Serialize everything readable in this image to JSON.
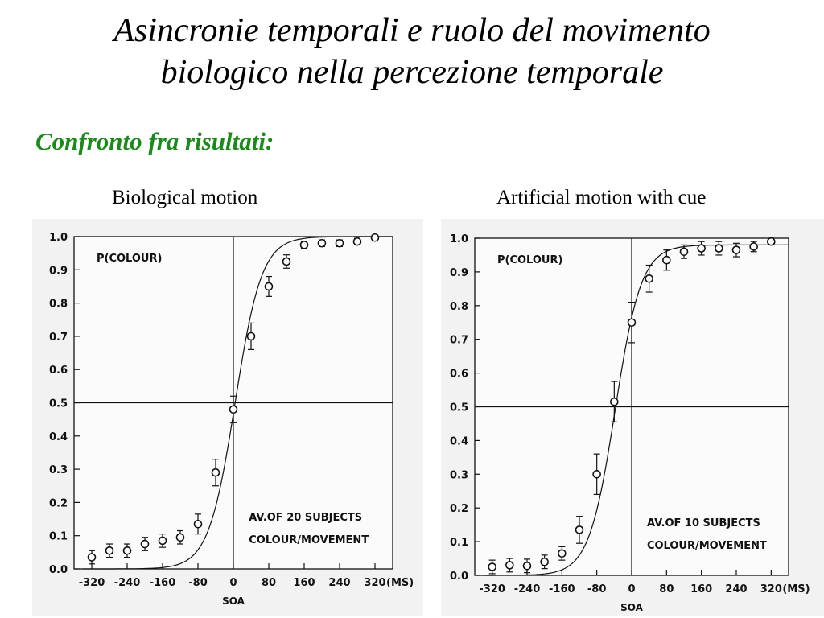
{
  "slide": {
    "title_line1": "Asincronie temporali e ruolo del movimento",
    "title_line2": "biologico nella percezione temporale",
    "subtitle": "Confronto fra risultati:"
  },
  "colors": {
    "subtitle": "#1a8a1a",
    "ink": "#111111",
    "scan_background": "#f2f2f2"
  },
  "chart_data": [
    {
      "type": "scatter",
      "panel_caption": "Biological motion",
      "ylabel": "P(COLOUR)",
      "xlabel": "SOA",
      "x_unit": "(MS)",
      "annotation": [
        "AV.OF 20 SUBJECTS",
        "COLOUR/MOVEMENT"
      ],
      "xlim": [
        -360,
        360
      ],
      "ylim": [
        0,
        1
      ],
      "xticks": [
        -320,
        -240,
        -160,
        -80,
        0,
        80,
        160,
        240,
        320
      ],
      "xticklabels": [
        "-320",
        "-240",
        "-160",
        "-80",
        "0",
        "80",
        "160",
        "240",
        "320"
      ],
      "yticks": [
        0,
        0.1,
        0.2,
        0.3,
        0.4,
        0.5,
        0.6,
        0.7,
        0.8,
        0.9,
        1.0
      ],
      "yticklabels": [
        "0.0",
        "0.1",
        "0.2",
        "0.3",
        "0.4",
        "0.5",
        "0.6",
        "0.7",
        "0.8",
        "0.9",
        "1.0"
      ],
      "reference_lines": {
        "x": 0,
        "y": 0.5
      },
      "points": [
        {
          "x": -320,
          "y": 0.035,
          "err": 0.02
        },
        {
          "x": -280,
          "y": 0.055,
          "err": 0.02
        },
        {
          "x": -240,
          "y": 0.055,
          "err": 0.02
        },
        {
          "x": -200,
          "y": 0.075,
          "err": 0.02
        },
        {
          "x": -160,
          "y": 0.085,
          "err": 0.02
        },
        {
          "x": -120,
          "y": 0.095,
          "err": 0.02
        },
        {
          "x": -80,
          "y": 0.135,
          "err": 0.03
        },
        {
          "x": -40,
          "y": 0.29,
          "err": 0.04
        },
        {
          "x": 0,
          "y": 0.48,
          "err": 0.04
        },
        {
          "x": 40,
          "y": 0.7,
          "err": 0.04
        },
        {
          "x": 80,
          "y": 0.85,
          "err": 0.03
        },
        {
          "x": 120,
          "y": 0.925,
          "err": 0.02
        },
        {
          "x": 160,
          "y": 0.975,
          "err": 0.01
        },
        {
          "x": 200,
          "y": 0.98,
          "err": 0.01
        },
        {
          "x": 240,
          "y": 0.98,
          "err": 0.01
        },
        {
          "x": 280,
          "y": 0.985,
          "err": 0.01
        },
        {
          "x": 320,
          "y": 0.997,
          "err": 0.005
        }
      ],
      "fit_curve": {
        "model": "logistic",
        "mu": 4,
        "s": 30
      }
    },
    {
      "type": "scatter",
      "panel_caption": "Artificial motion with cue",
      "ylabel": "P(COLOUR)",
      "xlabel": "SOA",
      "x_unit": "(MS)",
      "annotation": [
        "AV.OF 10 SUBJECTS",
        "COLOUR/MOVEMENT"
      ],
      "xlim": [
        -360,
        360
      ],
      "ylim": [
        0,
        1
      ],
      "xticks": [
        -320,
        -240,
        -160,
        -80,
        0,
        80,
        160,
        240,
        320
      ],
      "xticklabels": [
        "-320",
        "-240",
        "-160",
        "-80",
        "0",
        "80",
        "160",
        "240",
        "320"
      ],
      "yticks": [
        0,
        0.1,
        0.2,
        0.3,
        0.4,
        0.5,
        0.6,
        0.7,
        0.8,
        0.9,
        1.0
      ],
      "yticklabels": [
        "0.0",
        "0.1",
        "0.2",
        "0.3",
        "0.4",
        "0.5",
        "0.6",
        "0.7",
        "0.8",
        "0.9",
        "1.0"
      ],
      "reference_lines": {
        "x": 0,
        "y": 0.5
      },
      "points": [
        {
          "x": -320,
          "y": 0.025,
          "err": 0.02
        },
        {
          "x": -280,
          "y": 0.03,
          "err": 0.02
        },
        {
          "x": -240,
          "y": 0.028,
          "err": 0.02
        },
        {
          "x": -200,
          "y": 0.04,
          "err": 0.02
        },
        {
          "x": -160,
          "y": 0.065,
          "err": 0.02
        },
        {
          "x": -120,
          "y": 0.135,
          "err": 0.04
        },
        {
          "x": -80,
          "y": 0.3,
          "err": 0.06
        },
        {
          "x": -40,
          "y": 0.515,
          "err": 0.06
        },
        {
          "x": 0,
          "y": 0.75,
          "err": 0.06
        },
        {
          "x": 40,
          "y": 0.88,
          "err": 0.04
        },
        {
          "x": 80,
          "y": 0.935,
          "err": 0.03
        },
        {
          "x": 120,
          "y": 0.96,
          "err": 0.02
        },
        {
          "x": 160,
          "y": 0.97,
          "err": 0.02
        },
        {
          "x": 200,
          "y": 0.97,
          "err": 0.02
        },
        {
          "x": 240,
          "y": 0.965,
          "err": 0.02
        },
        {
          "x": 280,
          "y": 0.975,
          "err": 0.015
        },
        {
          "x": 320,
          "y": 0.99,
          "err": 0.01
        }
      ],
      "fit_curve": {
        "model": "logistic",
        "mu": -38,
        "s": 30,
        "top": 0.98
      }
    }
  ]
}
